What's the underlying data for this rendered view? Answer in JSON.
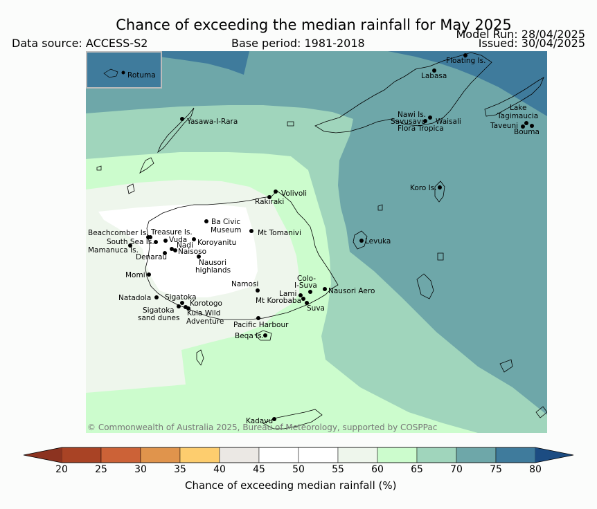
{
  "title": "Chance of exceeding the median rainfall for May 2025",
  "model_run": "Model Run: 28/04/2025",
  "issued": "Issued: 30/04/2025",
  "data_source": "Data source: ACCESS-S2",
  "base_period": "Base period: 1981-2018",
  "copyright": "© Commonwealth of Australia 2025, Bureau of Meteorology, supported by COSPPac",
  "inset_label": "Rotuma",
  "places": {
    "floating": "Floating Is.",
    "labasa": "Labasa",
    "yasawa": "Yasawa-I-Rara",
    "nawi": "Nawi Is.",
    "savusavu": "Savusavu",
    "waisali": "Waisali",
    "flora": "Flora Tropica",
    "lake": "Lake",
    "tagimaucia": "Tagimaucia",
    "taveuni": "Taveuni",
    "bouma": "Bouma",
    "koro": "Koro Is.",
    "volivoli": "Volivoli",
    "rakiraki": "Rakiraki",
    "bacivic1": "Ba Civic",
    "bacivic2": "Museum",
    "tomanivi": "Mt Tomanivi",
    "beachcomber": "Beachcomber Is.",
    "treasure": "Treasure Is.",
    "southsea": "South Sea Is.",
    "vuda": "Vuda",
    "koroyanitu": "Koroyanitu",
    "nadi": "Nadi",
    "mamanuca": "Mamanuca Is.",
    "naisoso": "Naisoso",
    "denarau": "Denarau",
    "nausori_h1": "Nausori",
    "nausori_h2": "highlands",
    "levuka": "Levuka",
    "momi": "Momi",
    "namosi": "Namosi",
    "colo1": "Colo-",
    "colo2": "I-Suva",
    "lami": "Lami",
    "nausori_aero": "Nausori Aero",
    "natadola": "Natadola",
    "sigatoka": "Sigatoka",
    "korobaba": "Mt Korobaba",
    "korotogo": "Korotogo",
    "suva": "Suva",
    "sig_dunes1": "Sigatoka",
    "sig_dunes2": "sand dunes",
    "kula1": "Kula Wild",
    "kula2": "Adventure",
    "pacific": "Pacific Harbour",
    "beqa": "Beqa Is.",
    "kadavu": "Kadavu"
  },
  "colorbar": {
    "label": "Chance of exceeding median rainfall (%)",
    "ticks": [
      "20",
      "25",
      "30",
      "35",
      "40",
      "45",
      "50",
      "55",
      "60",
      "65",
      "70",
      "75",
      "80"
    ],
    "colors": [
      "#a94325",
      "#cc6237",
      "#e0944c",
      "#fdcd6e",
      "#ebe8e4",
      "#ffffff",
      "#ffffff",
      "#eef6ec",
      "#ccfccd",
      "#a0d5bc",
      "#6ea7a9",
      "#3f7b9c"
    ],
    "under_color": "#8c3320",
    "over_color": "#1c4c82"
  },
  "map_colors": {
    "p55_60": "#eef6ec",
    "p60_65": "#ccfccd",
    "p65_70": "#a0d5bc",
    "p70_75": "#6ea7a9",
    "p75_80": "#3f7b9c",
    "p45_55": "#ffffff"
  }
}
